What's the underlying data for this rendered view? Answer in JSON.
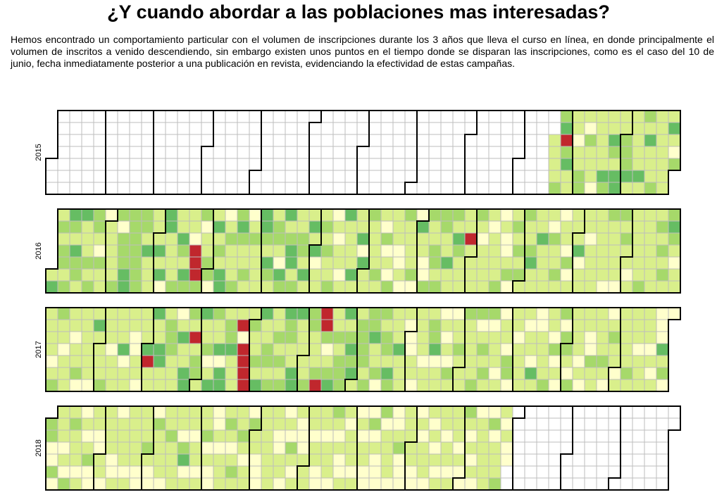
{
  "page": {
    "title": "¿Y cuando abordar a las poblaciones mas interesadas?",
    "intro": "Hemos encontrado un comportamiento particular con el volumen de inscripciones durante los 3 años que lleva el curso en línea, en donde principalmente el volumen de inscritos a venido descendiendo, sin embargo existen unos puntos en el tiempo donde se disparan las inscripciones, como es el caso del 10 de junio, fecha inmediatamente posterior a una publicación en revista, evidenciando la efectividad de estas campañas."
  },
  "chart_data": {
    "type": "heatmap",
    "layout": "calendar",
    "years": [
      "2015",
      "2016",
      "2017",
      "2018"
    ],
    "rows_per_year": 7,
    "weeks_per_year": 53,
    "colors": {
      "none": "#ffffff",
      "level_1": "#ffffcc",
      "level_2": "#d9ef8b",
      "level_3": "#a6d96a",
      "level_4": "#66bd63",
      "level_5": "#1a9850",
      "peak": "#c0272d",
      "grid": "#bdbdbd",
      "month_border": "#000000"
    },
    "peak_days": [
      "2015-10-27",
      "2016-03-23",
      "2016-03-24",
      "2016-03-25",
      "2016-08-30",
      "2017-03-02",
      "2017-03-28",
      "2017-04-24",
      "2017-04-26",
      "2017-04-27",
      "2017-04-28",
      "2017-04-29",
      "2017-06-10",
      "2017-06-11",
      "2017-06-12"
    ],
    "data_start": "2015-10-20",
    "data_end": "2018-09-27",
    "encoding": "per-day level, 0 = no data, 1-5 = increasing enrolment, 6 = peak"
  }
}
